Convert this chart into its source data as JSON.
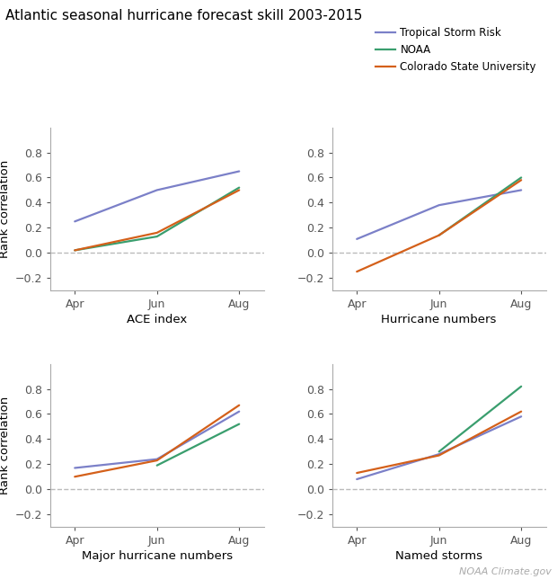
{
  "title": "Atlantic seasonal hurricane forecast skill 2003-2015",
  "title_fontsize": 11,
  "x_labels": [
    "Apr",
    "Jun",
    "Aug"
  ],
  "x_positions": [
    0,
    1,
    2
  ],
  "ylabel": "Rank correlation",
  "ylim": [
    -0.3,
    1.0
  ],
  "yticks": [
    -0.2,
    0.0,
    0.2,
    0.4,
    0.6,
    0.8
  ],
  "legend_labels": [
    "Tropical Storm Risk",
    "NOAA",
    "Colorado State University"
  ],
  "colors": {
    "TSR": "#7b80c8",
    "NOAA": "#3a9e6e",
    "CSU": "#d4601a"
  },
  "subplots": [
    {
      "title": "ACE index",
      "TSR": [
        0.25,
        0.5,
        0.65
      ],
      "NOAA": [
        0.02,
        0.13,
        0.52
      ],
      "CSU": [
        0.02,
        0.16,
        0.5
      ]
    },
    {
      "title": "Hurricane numbers",
      "TSR": [
        0.11,
        0.38,
        0.5
      ],
      "NOAA": [
        null,
        0.14,
        0.6
      ],
      "CSU": [
        -0.15,
        0.14,
        0.58
      ]
    },
    {
      "title": "Major hurricane numbers",
      "TSR": [
        0.17,
        0.24,
        0.62
      ],
      "NOAA": [
        null,
        0.19,
        0.52
      ],
      "CSU": [
        0.1,
        0.23,
        0.67
      ]
    },
    {
      "title": "Named storms",
      "TSR": [
        0.08,
        0.28,
        0.58
      ],
      "NOAA": [
        null,
        0.3,
        0.82
      ],
      "CSU": [
        0.13,
        0.27,
        0.62
      ]
    }
  ],
  "watermark": "NOAA Climate.gov",
  "watermark_fontsize": 8,
  "legend_fontsize": 8.5,
  "axis_fontsize": 9,
  "xlabel_fontsize": 9.5,
  "ylabel_fontsize": 9.5
}
